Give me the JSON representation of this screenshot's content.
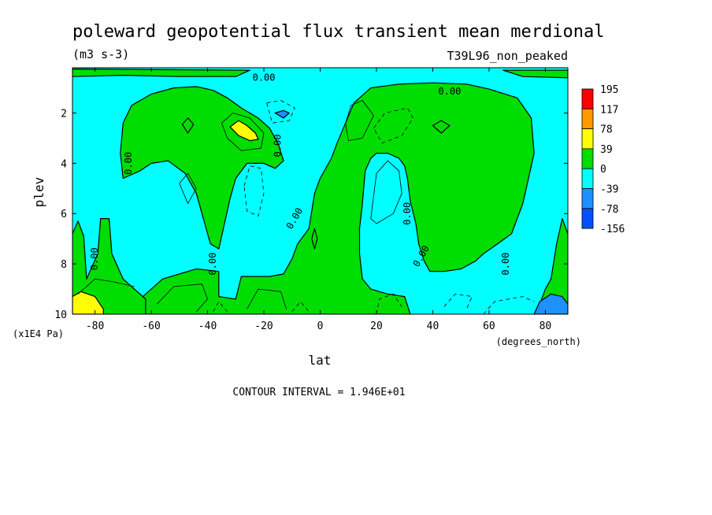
{
  "chart_data": {
    "type": "contour",
    "title": "poleward geopotential flux transient mean merdional",
    "units": "(m3 s-3)",
    "run_label": "T39L96_non_peaked",
    "xlabel": "lat",
    "x_units": "(degrees_north)",
    "ylabel": "plev",
    "y_units": "(x1E4 Pa)",
    "xlim": [
      -88,
      88
    ],
    "ylim": [
      10,
      0.2
    ],
    "x_ticks": [
      -80,
      -60,
      -40,
      -20,
      0,
      20,
      40,
      60,
      80
    ],
    "x_tick_labels": [
      "-80",
      "-60",
      "-40",
      "-20",
      "0",
      "20",
      "40",
      "60",
      "80"
    ],
    "y_ticks": [
      2,
      4,
      6,
      8,
      10
    ],
    "y_tick_labels": [
      "2",
      "4",
      "6",
      "8",
      "10"
    ],
    "contour_interval_text": "CONTOUR INTERVAL = 1.946E+01",
    "zero_contour_label": "0.00",
    "colorbar": {
      "levels": [
        "195",
        "117",
        "78",
        "39",
        "0",
        "-39",
        "-78",
        "-156"
      ],
      "colors": [
        "#ff0000",
        "#ff9900",
        "#ffff00",
        "#00dd00",
        "#00ffff",
        "#1e90ff",
        "#0050ff"
      ]
    },
    "regions": [
      {
        "name": "positive-region",
        "level": "0 to 39",
        "color": "#00dd00",
        "points": [
          [
            -64,
            10
          ],
          [
            -64,
            9.4
          ],
          [
            -56,
            8.6
          ],
          [
            -44,
            8.2
          ],
          [
            -36,
            8.3
          ],
          [
            -36,
            9.3
          ],
          [
            -30,
            9.4
          ],
          [
            -28,
            8.5
          ],
          [
            -18,
            8.5
          ],
          [
            -13,
            8.4
          ],
          [
            -10,
            7.8
          ],
          [
            -8,
            7.2
          ],
          [
            -4,
            6.6
          ],
          [
            -2,
            5.2
          ],
          [
            0,
            4.6
          ],
          [
            4,
            3.8
          ],
          [
            6,
            3.2
          ],
          [
            9,
            2.4
          ],
          [
            12,
            1.6
          ],
          [
            18,
            1.0
          ],
          [
            28,
            0.85
          ],
          [
            40,
            0.8
          ],
          [
            52,
            0.85
          ],
          [
            60,
            1.05
          ],
          [
            70,
            1.4
          ],
          [
            75,
            2.2
          ],
          [
            76,
            3.6
          ],
          [
            74,
            4.6
          ],
          [
            72,
            5.6
          ],
          [
            68,
            6.8
          ],
          [
            63,
            7.2
          ],
          [
            58,
            7.6
          ],
          [
            55,
            7.9
          ],
          [
            50,
            8.2
          ],
          [
            44,
            8.3
          ],
          [
            39,
            8.3
          ],
          [
            37,
            7.9
          ],
          [
            35,
            7.2
          ],
          [
            34,
            6.4
          ],
          [
            32,
            5.5
          ],
          [
            31,
            4.6
          ],
          [
            30,
            4.1
          ],
          [
            28,
            3.8
          ],
          [
            24,
            3.6
          ],
          [
            20,
            3.6
          ],
          [
            18,
            3.8
          ],
          [
            16,
            4.3
          ],
          [
            15,
            5.6
          ],
          [
            14,
            6.6
          ],
          [
            14,
            7.6
          ],
          [
            15,
            8.6
          ],
          [
            18,
            9.0
          ],
          [
            24,
            9.2
          ],
          [
            30,
            9.3
          ],
          [
            32,
            10
          ]
        ]
      },
      {
        "name": "positive-region",
        "level": "0 to 39",
        "color": "#00dd00",
        "points": [
          [
            -70,
            4.6
          ],
          [
            -71,
            3.6
          ],
          [
            -70,
            2.4
          ],
          [
            -67,
            1.7
          ],
          [
            -60,
            1.25
          ],
          [
            -52,
            1.0
          ],
          [
            -44,
            0.95
          ],
          [
            -38,
            1.1
          ],
          [
            -33,
            1.4
          ],
          [
            -28,
            1.8
          ],
          [
            -22,
            2.2
          ],
          [
            -18,
            2.6
          ],
          [
            -15,
            3.2
          ],
          [
            -13,
            3.9
          ],
          [
            -16,
            4.2
          ],
          [
            -20,
            4.0
          ],
          [
            -26,
            4.0
          ],
          [
            -30,
            4.6
          ],
          [
            -32,
            5.4
          ],
          [
            -34,
            6.4
          ],
          [
            -36,
            7.4
          ],
          [
            -39,
            7.2
          ],
          [
            -41,
            6.4
          ],
          [
            -44,
            5.2
          ],
          [
            -48,
            4.4
          ],
          [
            -54,
            3.9
          ],
          [
            -60,
            4.0
          ],
          [
            -64,
            4.3
          ]
        ]
      },
      {
        "name": "positive-region",
        "level": "0 to 39",
        "color": "#00dd00",
        "points": [
          [
            -88,
            10
          ],
          [
            -88,
            6.8
          ],
          [
            -86,
            6.3
          ],
          [
            -84,
            6.9
          ],
          [
            -83,
            8.6
          ],
          [
            -79,
            7.6
          ],
          [
            -78,
            6.2
          ],
          [
            -75,
            6.2
          ],
          [
            -74,
            7.6
          ],
          [
            -70,
            8.6
          ],
          [
            -66,
            9.0
          ],
          [
            -62,
            9.4
          ],
          [
            -62,
            10
          ]
        ]
      },
      {
        "name": "positive-region",
        "level": "0 to 39",
        "color": "#00dd00",
        "points": [
          [
            78,
            10
          ],
          [
            78,
            9.6
          ],
          [
            80,
            9.0
          ],
          [
            82,
            8.6
          ],
          [
            84,
            7.2
          ],
          [
            86,
            6.2
          ],
          [
            88,
            6.8
          ],
          [
            88,
            10
          ]
        ]
      },
      {
        "name": "positive-region",
        "level": "0 to 39",
        "color": "#00dd00",
        "points": [
          [
            -88,
            0.55
          ],
          [
            -70,
            0.5
          ],
          [
            -50,
            0.55
          ],
          [
            -30,
            0.55
          ],
          [
            -25,
            0.3
          ],
          [
            -88,
            0.25
          ]
        ]
      },
      {
        "name": "positive-region",
        "level": "0 to 39",
        "color": "#00dd00",
        "points": [
          [
            65,
            0.3
          ],
          [
            88,
            0.3
          ],
          [
            88,
            0.6
          ],
          [
            72,
            0.55
          ]
        ]
      },
      {
        "name": "positive-region",
        "level": "0 to 39",
        "color": "#00dd00",
        "points": [
          [
            -49,
            2.45
          ],
          [
            -47,
            2.2
          ],
          [
            -45,
            2.45
          ],
          [
            -47,
            2.8
          ]
        ]
      },
      {
        "name": "positive-region",
        "level": "0 to 39",
        "color": "#00dd00",
        "points": [
          [
            -3,
            7.0
          ],
          [
            -2,
            6.6
          ],
          [
            -1,
            7.0
          ],
          [
            -2,
            7.4
          ]
        ]
      },
      {
        "name": "positive-region",
        "level": "0 to 39",
        "color": "#00dd00",
        "points": [
          [
            40,
            2.5
          ],
          [
            43,
            2.3
          ],
          [
            46,
            2.5
          ],
          [
            43,
            2.8
          ]
        ]
      },
      {
        "name": "high-positive-region",
        "level": "39 to 78",
        "color": "#ffff00",
        "points": [
          [
            -32,
            2.55
          ],
          [
            -29,
            2.3
          ],
          [
            -26,
            2.5
          ],
          [
            -23,
            2.8
          ],
          [
            -22,
            3.05
          ],
          [
            -25,
            3.1
          ],
          [
            -29,
            2.9
          ]
        ]
      },
      {
        "name": "high-positive-region",
        "level": "39 to 78",
        "color": "#ffff00",
        "points": [
          [
            -88,
            10
          ],
          [
            -88,
            9.3
          ],
          [
            -85,
            9.1
          ],
          [
            -80,
            9.3
          ],
          [
            -77,
            9.8
          ],
          [
            -77,
            10
          ]
        ]
      },
      {
        "name": "negative-region",
        "level": "-78 to -39",
        "color": "#1e90ff",
        "points": [
          [
            -16,
            2.0
          ],
          [
            -13,
            1.9
          ],
          [
            -11,
            2.0
          ],
          [
            -13,
            2.2
          ]
        ]
      },
      {
        "name": "negative-region",
        "level": "-78 to -39",
        "color": "#1e90ff",
        "points": [
          [
            76,
            10
          ],
          [
            78,
            9.5
          ],
          [
            82,
            9.2
          ],
          [
            86,
            9.3
          ],
          [
            88,
            9.6
          ],
          [
            88,
            10
          ]
        ]
      }
    ],
    "contour_lines": [
      {
        "style": "solid",
        "points": [
          [
            -35,
            2.4
          ],
          [
            -31,
            2.0
          ],
          [
            -25,
            2.2
          ],
          [
            -20,
            2.8
          ],
          [
            -21,
            3.4
          ],
          [
            -28,
            3.5
          ],
          [
            -33,
            3.0
          ],
          [
            -35,
            2.4
          ]
        ]
      },
      {
        "style": "solid",
        "points": [
          [
            9,
            2.4
          ],
          [
            11,
            1.7
          ],
          [
            15,
            1.5
          ],
          [
            19,
            2.1
          ],
          [
            15,
            3.0
          ],
          [
            10,
            3.1
          ],
          [
            9,
            2.4
          ]
        ]
      },
      {
        "style": "solid",
        "points": [
          [
            18,
            6.2
          ],
          [
            20,
            4.4
          ],
          [
            24,
            3.9
          ],
          [
            28,
            4.3
          ],
          [
            29,
            5.2
          ],
          [
            26,
            6.0
          ],
          [
            20,
            6.4
          ],
          [
            18,
            6.2
          ]
        ]
      },
      {
        "style": "solid",
        "points": [
          [
            -50,
            4.8
          ],
          [
            -47,
            4.4
          ],
          [
            -44,
            5.0
          ],
          [
            -47,
            5.6
          ],
          [
            -50,
            4.8
          ]
        ]
      },
      {
        "style": "solid",
        "points": [
          [
            -58,
            9.6
          ],
          [
            -52,
            8.9
          ],
          [
            -42,
            8.8
          ],
          [
            -40,
            9.4
          ],
          [
            -44,
            9.9
          ]
        ]
      },
      {
        "style": "solid",
        "points": [
          [
            -86,
            9.2
          ],
          [
            -80,
            8.6
          ],
          [
            -74,
            8.7
          ],
          [
            -66,
            8.9
          ]
        ]
      },
      {
        "style": "solid",
        "points": [
          [
            -26,
            9.8
          ],
          [
            -22,
            9.0
          ],
          [
            -14,
            9.1
          ],
          [
            -12,
            9.8
          ]
        ]
      },
      {
        "style": "dashed",
        "points": [
          [
            -19,
            1.6
          ],
          [
            -14,
            1.5
          ],
          [
            -9,
            1.8
          ],
          [
            -11,
            2.3
          ],
          [
            -17,
            2.4
          ],
          [
            -19,
            1.6
          ]
        ]
      },
      {
        "style": "dashed",
        "points": [
          [
            19,
            2.6
          ],
          [
            23,
            2.0
          ],
          [
            31,
            1.8
          ],
          [
            33,
            2.2
          ],
          [
            29,
            2.9
          ],
          [
            22,
            3.2
          ],
          [
            19,
            2.6
          ]
        ]
      },
      {
        "style": "dashed",
        "points": [
          [
            -27,
            4.9
          ],
          [
            -25,
            4.1
          ],
          [
            -21,
            4.2
          ],
          [
            -20,
            5.2
          ],
          [
            -22,
            6.1
          ],
          [
            -26,
            5.9
          ],
          [
            -27,
            4.9
          ]
        ]
      },
      {
        "style": "dashed",
        "points": [
          [
            20,
            10
          ],
          [
            21,
            9.4
          ],
          [
            26,
            9.2
          ],
          [
            29,
            9.7
          ]
        ]
      },
      {
        "style": "dashed",
        "points": [
          [
            44,
            9.7
          ],
          [
            48,
            9.2
          ],
          [
            54,
            9.3
          ],
          [
            52,
            9.8
          ]
        ]
      },
      {
        "style": "dashed",
        "points": [
          [
            58,
            10
          ],
          [
            62,
            9.5
          ],
          [
            72,
            9.3
          ],
          [
            76,
            9.5
          ]
        ]
      },
      {
        "style": "dashed",
        "points": [
          [
            -38,
            9.9
          ],
          [
            -36,
            9.5
          ],
          [
            -33,
            9.9
          ]
        ]
      },
      {
        "style": "dashed",
        "points": [
          [
            -10,
            9.9
          ],
          [
            -7,
            9.5
          ],
          [
            -4,
            9.9
          ]
        ]
      }
    ],
    "zero_label_positions": [
      {
        "x": -20,
        "y": 0.6,
        "rotate": 0
      },
      {
        "x": 46,
        "y": 1.15,
        "rotate": 0
      },
      {
        "x": -15,
        "y": 3.3,
        "rotate": -90
      },
      {
        "x": -68,
        "y": 4.0,
        "rotate": -90
      },
      {
        "x": -9,
        "y": 6.2,
        "rotate": -60
      },
      {
        "x": 31,
        "y": 6.0,
        "rotate": -90
      },
      {
        "x": 36,
        "y": 7.7,
        "rotate": -60
      },
      {
        "x": -80,
        "y": 7.8,
        "rotate": -90
      },
      {
        "x": -38,
        "y": 8.0,
        "rotate": -90
      },
      {
        "x": 66,
        "y": 8.0,
        "rotate": -90
      }
    ]
  }
}
